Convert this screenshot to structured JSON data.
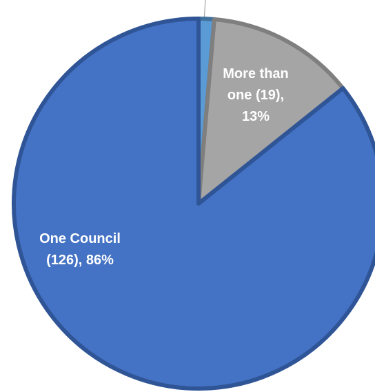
{
  "chart_data": {
    "type": "pie",
    "slices": [
      {
        "label_lines": [
          "One Council",
          "(126), 86%"
        ],
        "value": 126,
        "percent": 86,
        "color": "#4472C4",
        "border": "#2F5597"
      },
      {
        "label_lines": [
          "More than",
          "one (19),",
          "13%"
        ],
        "value": 19,
        "percent": 13,
        "color": "#A5A5A5",
        "border": "#7F7F7F"
      },
      {
        "label_lines": [],
        "value": 2,
        "percent": 1,
        "color": "#5B9BD5",
        "border": "#41719C"
      }
    ]
  }
}
